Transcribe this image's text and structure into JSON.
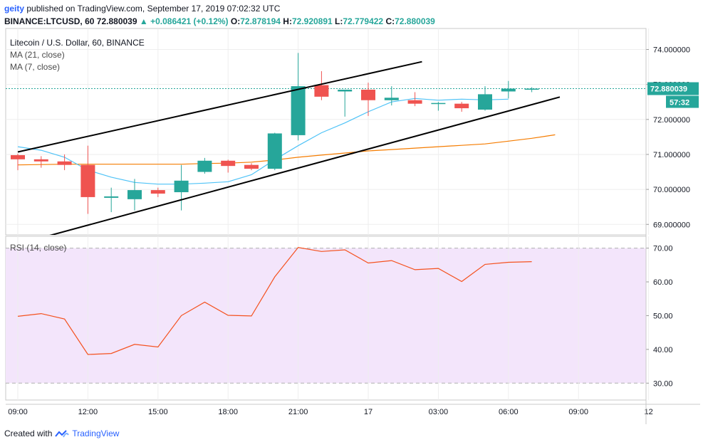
{
  "header": {
    "user": "geity",
    "published_text": "published on TradingView.com, September 17, 2019 07:02:32 UTC"
  },
  "ohlc": {
    "symbol": "BINANCE:LTCUSD, 60",
    "last": "72.880039",
    "change": "+0.086421 (+0.12%)",
    "o_label": "O:",
    "o": "72.878194",
    "h_label": "H:",
    "h": "72.920891",
    "l_label": "L:",
    "l": "72.779422",
    "c_label": "C:",
    "c": "72.880039"
  },
  "legend": {
    "title": "Litecoin / U.S. Dollar, 60, BINANCE",
    "ma21": "MA (21, close)",
    "ma7": "MA (7, close)",
    "rsi": "RSI (14, close)"
  },
  "price_marker": {
    "value": "72.880039",
    "countdown": "57:32"
  },
  "footer": {
    "created_with": "Created with",
    "brand": "TradingView"
  },
  "colors": {
    "up": "#26a69a",
    "down": "#ef5350",
    "ma21": "#f57c00",
    "ma7": "#4fc3f7",
    "rsi_line": "#f4511e",
    "rsi_band": "#f3e5fb",
    "trendline": "#000000",
    "price_line": "#26a69a"
  },
  "chart_data": [
    {
      "type": "candlestick",
      "title": "Litecoin / U.S. Dollar, 60, BINANCE",
      "ylim": [
        68.7,
        74.6
      ],
      "y_ticks": [
        "74.000000",
        "73.000000",
        "72.000000",
        "71.000000",
        "70.000000",
        "69.000000"
      ],
      "y_tick_values": [
        74,
        73,
        72,
        71,
        70,
        69
      ],
      "x_ticks": [
        "09:00",
        "12:00",
        "15:00",
        "18:00",
        "21:00",
        "17",
        "03:00",
        "06:00",
        "09:00",
        "12"
      ],
      "x_tick_index": [
        0,
        3,
        6,
        9,
        12,
        15,
        18,
        21,
        24,
        27
      ],
      "candles": [
        {
          "o": 70.98,
          "h": 71.02,
          "l": 70.55,
          "c": 70.86
        },
        {
          "o": 70.86,
          "h": 70.95,
          "l": 70.62,
          "c": 70.8
        },
        {
          "o": 70.8,
          "h": 71.0,
          "l": 70.55,
          "c": 70.7
        },
        {
          "o": 70.7,
          "h": 71.25,
          "l": 69.3,
          "c": 69.78
        },
        {
          "o": 69.76,
          "h": 70.05,
          "l": 69.35,
          "c": 69.8
        },
        {
          "o": 69.72,
          "h": 70.3,
          "l": 69.4,
          "c": 69.98
        },
        {
          "o": 69.98,
          "h": 70.05,
          "l": 69.78,
          "c": 69.88
        },
        {
          "o": 69.92,
          "h": 70.7,
          "l": 69.4,
          "c": 70.25
        },
        {
          "o": 70.5,
          "h": 70.9,
          "l": 70.45,
          "c": 70.82
        },
        {
          "o": 70.82,
          "h": 70.85,
          "l": 70.48,
          "c": 70.67
        },
        {
          "o": 70.7,
          "h": 70.75,
          "l": 70.55,
          "c": 70.59
        },
        {
          "o": 70.59,
          "h": 71.62,
          "l": 70.55,
          "c": 71.6
        },
        {
          "o": 71.55,
          "h": 73.9,
          "l": 71.4,
          "c": 72.95
        },
        {
          "o": 72.98,
          "h": 73.38,
          "l": 72.55,
          "c": 72.65
        },
        {
          "o": 72.8,
          "h": 72.8,
          "l": 72.08,
          "c": 72.85
        },
        {
          "o": 72.85,
          "h": 73.05,
          "l": 72.1,
          "c": 72.55
        },
        {
          "o": 72.55,
          "h": 72.95,
          "l": 72.4,
          "c": 72.62
        },
        {
          "o": 72.55,
          "h": 72.78,
          "l": 72.38,
          "c": 72.45
        },
        {
          "o": 72.44,
          "h": 72.5,
          "l": 72.25,
          "c": 72.47
        },
        {
          "o": 72.45,
          "h": 72.5,
          "l": 72.22,
          "c": 72.32
        },
        {
          "o": 72.28,
          "h": 72.95,
          "l": 72.25,
          "c": 72.72
        },
        {
          "o": 72.8,
          "h": 73.1,
          "l": 72.6,
          "c": 72.88
        },
        {
          "o": 72.88,
          "h": 72.92,
          "l": 72.78,
          "c": 72.88
        }
      ],
      "ma21": [
        70.7,
        70.71,
        70.72,
        70.72,
        70.72,
        70.72,
        70.72,
        70.72,
        70.74,
        70.75,
        70.78,
        70.84,
        70.92,
        70.98,
        71.04,
        71.1,
        71.14,
        71.18,
        71.22,
        71.26,
        71.3,
        71.38,
        71.46,
        71.56
      ],
      "ma7": [
        71.22,
        71.12,
        70.92,
        70.55,
        70.35,
        70.2,
        70.15,
        70.15,
        70.18,
        70.22,
        70.42,
        70.85,
        71.25,
        71.62,
        71.9,
        72.22,
        72.5,
        72.6,
        72.55,
        72.58,
        72.56,
        72.58
      ],
      "trendlines": [
        {
          "from": [
            0,
            71.07
          ],
          "to": [
            17.3,
            73.65
          ]
        },
        {
          "from": [
            1.3,
            68.67
          ],
          "to": [
            23.2,
            72.64
          ]
        }
      ]
    },
    {
      "type": "line",
      "title": "RSI (14, close)",
      "ylim": [
        25,
        73.5
      ],
      "y_ticks": [
        "70.00",
        "60.00",
        "50.00",
        "40.00",
        "30.00"
      ],
      "y_tick_values": [
        70,
        60,
        50,
        40,
        30
      ],
      "band": [
        30,
        70
      ],
      "values": [
        49.8,
        50.6,
        49.0,
        38.5,
        38.8,
        41.5,
        40.7,
        50.0,
        54.0,
        50.1,
        49.9,
        61.5,
        70.2,
        69.0,
        69.5,
        65.6,
        66.3,
        63.6,
        64.0,
        60.1,
        65.2,
        65.8,
        66.0
      ]
    }
  ]
}
